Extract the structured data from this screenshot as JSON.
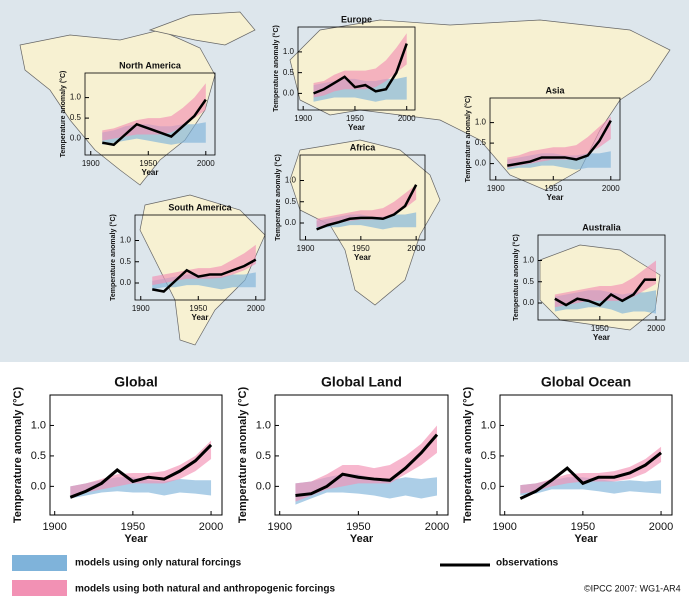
{
  "legend": [
    {
      "label": "models using only natural forcings",
      "color": "#7fb3da"
    },
    {
      "label": "models using both natural and anthropogenic forcings",
      "color": "#f291b4"
    },
    {
      "label": "observations",
      "color": "#000000"
    }
  ],
  "credit": "©IPCC  2007: WG1-AR4",
  "chart_data": [
    {
      "type": "line",
      "title": "North America",
      "ylabel": "Temperature anomaly (°C)",
      "xlabel": "Year",
      "x": [
        1910,
        1920,
        1930,
        1940,
        1950,
        1960,
        1970,
        1980,
        1990,
        2000
      ],
      "xlim": [
        1895,
        2008
      ],
      "xticks": [
        1900,
        1950,
        2000
      ],
      "ylim": [
        -0.4,
        1.6
      ],
      "yticks": [
        {
          "value": 0,
          "label": "0.0"
        },
        {
          "value": 0.5,
          "label": "0.5"
        },
        {
          "value": 1,
          "label": "1.0"
        }
      ],
      "observations": [
        -0.1,
        -0.15,
        0.1,
        0.35,
        0.25,
        0.15,
        0.05,
        0.3,
        0.55,
        0.95
      ],
      "natural": {
        "lower": [
          -0.15,
          -0.1,
          -0.05,
          0,
          -0.05,
          -0.1,
          -0.15,
          -0.1,
          -0.1,
          -0.1
        ],
        "upper": [
          0.15,
          0.2,
          0.3,
          0.35,
          0.35,
          0.3,
          0.3,
          0.35,
          0.35,
          0.4
        ]
      },
      "anthropogenic": {
        "lower": [
          -0.05,
          0,
          0.05,
          0.1,
          0.1,
          0.1,
          0.15,
          0.3,
          0.5,
          0.7
        ],
        "upper": [
          0.2,
          0.25,
          0.35,
          0.45,
          0.5,
          0.5,
          0.55,
          0.75,
          1.0,
          1.35
        ]
      }
    },
    {
      "type": "line",
      "title": "Europe",
      "ylabel": "Temperature anomaly (°C)",
      "xlabel": "Year",
      "x": [
        1910,
        1920,
        1930,
        1940,
        1950,
        1960,
        1970,
        1980,
        1990,
        2000
      ],
      "xlim": [
        1895,
        2008
      ],
      "xticks": [
        1900,
        1950,
        2000
      ],
      "ylim": [
        -0.4,
        1.6
      ],
      "yticks": [
        {
          "value": 0,
          "label": "0.0"
        },
        {
          "value": 0.5,
          "label": "0.5"
        },
        {
          "value": 1,
          "label": "1.0"
        }
      ],
      "observations": [
        0,
        0.1,
        0.25,
        0.4,
        0.15,
        0.2,
        0.05,
        0.1,
        0.5,
        1.2
      ],
      "natural": {
        "lower": [
          -0.2,
          -0.15,
          -0.1,
          -0.1,
          -0.1,
          -0.15,
          -0.2,
          -0.15,
          -0.15,
          -0.15
        ],
        "upper": [
          0.2,
          0.25,
          0.3,
          0.35,
          0.35,
          0.3,
          0.3,
          0.35,
          0.35,
          0.4
        ]
      },
      "anthropogenic": {
        "lower": [
          -0.1,
          -0.05,
          0.05,
          0.1,
          0.1,
          0.1,
          0.15,
          0.3,
          0.5,
          0.7
        ],
        "upper": [
          0.25,
          0.3,
          0.45,
          0.55,
          0.55,
          0.55,
          0.6,
          0.8,
          1.1,
          1.45
        ]
      }
    },
    {
      "type": "line",
      "title": "Asia",
      "ylabel": "Temperature anomaly (°C)",
      "xlabel": "Year",
      "x": [
        1910,
        1920,
        1930,
        1940,
        1950,
        1960,
        1970,
        1980,
        1990,
        2000
      ],
      "xlim": [
        1895,
        2008
      ],
      "xticks": [
        1900,
        1950,
        2000
      ],
      "ylim": [
        -0.4,
        1.6
      ],
      "yticks": [
        {
          "value": 0,
          "label": "0.0"
        },
        {
          "value": 0.5,
          "label": "0.5"
        },
        {
          "value": 1,
          "label": "1.0"
        }
      ],
      "observations": [
        -0.05,
        0,
        0.05,
        0.15,
        0.15,
        0.15,
        0.1,
        0.2,
        0.55,
        1.05
      ],
      "natural": {
        "lower": [
          -0.15,
          -0.1,
          -0.1,
          -0.05,
          -0.05,
          -0.1,
          -0.15,
          -0.1,
          -0.1,
          -0.1
        ],
        "upper": [
          0.1,
          0.15,
          0.2,
          0.25,
          0.25,
          0.2,
          0.2,
          0.25,
          0.25,
          0.3
        ]
      },
      "anthropogenic": {
        "lower": [
          -0.1,
          -0.05,
          0,
          0.05,
          0.1,
          0.1,
          0.1,
          0.25,
          0.4,
          0.6
        ],
        "upper": [
          0.15,
          0.2,
          0.3,
          0.35,
          0.4,
          0.4,
          0.45,
          0.65,
          0.9,
          1.15
        ]
      }
    },
    {
      "type": "line",
      "title": "Africa",
      "ylabel": "Temperature anomaly (°C)",
      "xlabel": "Year",
      "x": [
        1910,
        1920,
        1930,
        1940,
        1950,
        1960,
        1970,
        1980,
        1990,
        2000
      ],
      "xlim": [
        1895,
        2008
      ],
      "xticks": [
        1900,
        1950,
        2000
      ],
      "ylim": [
        -0.4,
        1.6
      ],
      "yticks": [
        {
          "value": 0,
          "label": "0.0"
        },
        {
          "value": 0.5,
          "label": "0.5"
        },
        {
          "value": 1,
          "label": "1.0"
        }
      ],
      "observations": [
        -0.15,
        -0.05,
        0.02,
        0.1,
        0.12,
        0.12,
        0.1,
        0.2,
        0.4,
        0.9
      ],
      "natural": {
        "lower": [
          -0.15,
          -0.1,
          -0.1,
          -0.05,
          -0.05,
          -0.1,
          -0.15,
          -0.1,
          -0.1,
          -0.1
        ],
        "upper": [
          0.05,
          0.1,
          0.15,
          0.2,
          0.2,
          0.15,
          0.15,
          0.2,
          0.2,
          0.25
        ]
      },
      "anthropogenic": {
        "lower": [
          -0.1,
          -0.05,
          0,
          0.05,
          0.08,
          0.08,
          0.1,
          0.2,
          0.35,
          0.55
        ],
        "upper": [
          0.1,
          0.15,
          0.2,
          0.25,
          0.3,
          0.3,
          0.35,
          0.5,
          0.7,
          0.9
        ]
      }
    },
    {
      "type": "line",
      "title": "South America",
      "ylabel": "Temperature anomaly (°C)",
      "xlabel": "Year",
      "x": [
        1910,
        1920,
        1930,
        1940,
        1950,
        1960,
        1970,
        1980,
        1990,
        2000
      ],
      "xlim": [
        1895,
        2008
      ],
      "xticks": [
        1900,
        1950,
        2000
      ],
      "ylim": [
        -0.4,
        1.6
      ],
      "yticks": [
        {
          "value": 0,
          "label": "0.0"
        },
        {
          "value": 0.5,
          "label": "0.5"
        },
        {
          "value": 1,
          "label": "1.0"
        }
      ],
      "observations": [
        -0.15,
        -0.2,
        0.05,
        0.3,
        0.15,
        0.2,
        0.2,
        0.3,
        0.4,
        0.55
      ],
      "natural": {
        "lower": [
          -0.15,
          -0.1,
          -0.1,
          -0.05,
          -0.05,
          -0.1,
          -0.15,
          -0.1,
          -0.1,
          -0.1
        ],
        "upper": [
          0.05,
          0.1,
          0.15,
          0.2,
          0.2,
          0.15,
          0.15,
          0.2,
          0.2,
          0.25
        ]
      },
      "anthropogenic": {
        "lower": [
          -0.05,
          0,
          0.05,
          0.1,
          0.1,
          0.1,
          0.12,
          0.2,
          0.3,
          0.45
        ],
        "upper": [
          0.15,
          0.2,
          0.25,
          0.3,
          0.35,
          0.35,
          0.4,
          0.55,
          0.7,
          0.9
        ]
      }
    },
    {
      "type": "line",
      "title": "Australia",
      "ylabel": "Temperature anomaly (°C)",
      "xlabel": "Year",
      "x": [
        1910,
        1920,
        1930,
        1940,
        1950,
        1960,
        1970,
        1980,
        1990,
        2000
      ],
      "xlim": [
        1895,
        2008
      ],
      "xticks": [
        1950,
        2000
      ],
      "ylim": [
        -0.4,
        1.6
      ],
      "yticks": [
        {
          "value": 0,
          "label": "0.0"
        },
        {
          "value": 0.5,
          "label": "0.5"
        },
        {
          "value": 1,
          "label": "1.0"
        }
      ],
      "observations": [
        0.1,
        -0.05,
        0.1,
        0.05,
        -0.05,
        0.2,
        0.05,
        0.2,
        0.55,
        0.55
      ],
      "natural": {
        "lower": [
          -0.2,
          -0.15,
          -0.15,
          -0.1,
          -0.1,
          -0.15,
          -0.25,
          -0.2,
          -0.2,
          -0.25
        ],
        "upper": [
          0.15,
          0.2,
          0.25,
          0.3,
          0.3,
          0.25,
          0.2,
          0.25,
          0.25,
          0.3
        ]
      },
      "anthropogenic": {
        "lower": [
          -0.1,
          -0.05,
          0,
          0.05,
          0.05,
          0.05,
          0.05,
          0.15,
          0.3,
          0.45
        ],
        "upper": [
          0.2,
          0.25,
          0.3,
          0.35,
          0.4,
          0.4,
          0.45,
          0.6,
          0.8,
          1.0
        ]
      }
    },
    {
      "type": "line",
      "title": "Global",
      "ylabel": "Temperature anomaly (°C)",
      "xlabel": "Year",
      "x": [
        1910,
        1920,
        1930,
        1940,
        1950,
        1960,
        1970,
        1980,
        1990,
        2000
      ],
      "xlim": [
        1897,
        2007
      ],
      "xticks": [
        1900,
        1950,
        2000
      ],
      "ylim": [
        -0.47,
        1.5
      ],
      "yticks": [
        {
          "value": 0,
          "label": "0.0"
        },
        {
          "value": 0.5,
          "label": "0.5"
        },
        {
          "value": 1,
          "label": "1.0"
        }
      ],
      "observations": [
        -0.18,
        -0.08,
        0.05,
        0.27,
        0.08,
        0.15,
        0.12,
        0.25,
        0.42,
        0.68
      ],
      "natural": {
        "lower": [
          -0.2,
          -0.15,
          -0.1,
          -0.08,
          -0.1,
          -0.1,
          -0.15,
          -0.1,
          -0.12,
          -0.15
        ],
        "upper": [
          0,
          0.05,
          0.1,
          0.15,
          0.15,
          0.1,
          0.08,
          0.12,
          0.1,
          0.1
        ]
      },
      "anthropogenic": {
        "lower": [
          -0.15,
          -0.1,
          -0.05,
          0,
          0.05,
          0.05,
          0.05,
          0.12,
          0.25,
          0.45
        ],
        "upper": [
          0,
          0.05,
          0.12,
          0.2,
          0.22,
          0.22,
          0.25,
          0.35,
          0.5,
          0.75
        ]
      }
    },
    {
      "type": "line",
      "title": "Global Land",
      "ylabel": "Temperature anomaly (°C)",
      "xlabel": "Year",
      "x": [
        1910,
        1920,
        1930,
        1940,
        1950,
        1960,
        1970,
        1980,
        1990,
        2000
      ],
      "xlim": [
        1897,
        2007
      ],
      "xticks": [
        1900,
        1950,
        2000
      ],
      "ylim": [
        -0.47,
        1.5
      ],
      "yticks": [
        {
          "value": 0,
          "label": "0.0"
        },
        {
          "value": 0.5,
          "label": "0.5"
        },
        {
          "value": 1,
          "label": "1.0"
        }
      ],
      "observations": [
        -0.15,
        -0.12,
        0,
        0.2,
        0.15,
        0.12,
        0.1,
        0.3,
        0.55,
        0.85
      ],
      "natural": {
        "lower": [
          -0.3,
          -0.2,
          -0.1,
          -0.1,
          -0.12,
          -0.15,
          -0.2,
          -0.15,
          -0.2,
          -0.15
        ],
        "upper": [
          0.05,
          0.08,
          0.15,
          0.2,
          0.2,
          0.12,
          0.1,
          0.15,
          0.12,
          0.15
        ]
      },
      "anthropogenic": {
        "lower": [
          -0.25,
          -0.15,
          -0.05,
          0,
          0.05,
          0.05,
          0.05,
          0.2,
          0.35,
          0.55
        ],
        "upper": [
          0.05,
          0.08,
          0.2,
          0.35,
          0.35,
          0.3,
          0.35,
          0.5,
          0.7,
          1.0
        ]
      }
    },
    {
      "type": "line",
      "title": "Global Ocean",
      "ylabel": "Temperature anomaly (°C)",
      "xlabel": "Year",
      "x": [
        1910,
        1920,
        1930,
        1940,
        1950,
        1960,
        1970,
        1980,
        1990,
        2000
      ],
      "xlim": [
        1897,
        2007
      ],
      "xticks": [
        1900,
        1950,
        2000
      ],
      "ylim": [
        -0.47,
        1.5
      ],
      "yticks": [
        {
          "value": 0,
          "label": "0.0"
        },
        {
          "value": 0.5,
          "label": "0.5"
        },
        {
          "value": 1,
          "label": "1.0"
        }
      ],
      "observations": [
        -0.2,
        -0.08,
        0.1,
        0.3,
        0.05,
        0.15,
        0.15,
        0.22,
        0.35,
        0.55
      ],
      "natural": {
        "lower": [
          -0.15,
          -0.12,
          -0.05,
          -0.05,
          -0.05,
          -0.08,
          -0.12,
          -0.08,
          -0.1,
          -0.12
        ],
        "upper": [
          0.02,
          0.05,
          0.1,
          0.15,
          0.15,
          0.12,
          0.08,
          0.1,
          0.08,
          0.1
        ]
      },
      "anthropogenic": {
        "lower": [
          -0.12,
          -0.08,
          0,
          0.05,
          0.08,
          0.08,
          0.08,
          0.12,
          0.22,
          0.4
        ],
        "upper": [
          0.02,
          0.05,
          0.12,
          0.2,
          0.22,
          0.22,
          0.25,
          0.32,
          0.45,
          0.65
        ]
      }
    }
  ]
}
